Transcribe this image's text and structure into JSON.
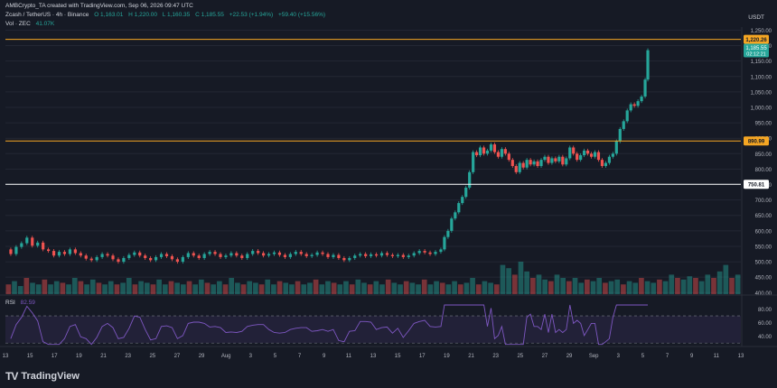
{
  "header": {
    "byline": "AMBCrypto_TA created with TradingView.com, Sep 06, 2026 09:47 UTC",
    "symbol": "Zcash / TetherUS · 4h · Binance",
    "ohlc": {
      "o": "O 1,163.01",
      "h": "H 1,220.00",
      "l": "L 1,160.35",
      "c": "C 1,185.55",
      "chg": "+22.53 (+1.94%)",
      "range": "+59.40 (+15.56%)"
    },
    "volume": {
      "label": "Vol · ZEC",
      "value": "41.07K"
    }
  },
  "axis": {
    "unit": "USDT",
    "rsi_label": "RSI",
    "rsi_value": "82.59"
  },
  "brand": {
    "name": "TradingView",
    "logo": "TV"
  },
  "colors": {
    "bg": "#161a25",
    "up": "#26a69a",
    "down": "#ef5350",
    "resistance": "#f5a623",
    "support": "#ffffff",
    "rsi": "#7e57c2",
    "price_tag": "#26a69a"
  },
  "chart_data": {
    "type": "candlestick",
    "y_ticks": [
      "1,250.00",
      "1,200.00",
      "1,150.00",
      "1,100.00",
      "1,050.00",
      "1,000.00",
      "950.00",
      "900.00",
      "850.00",
      "800.00",
      "750.00",
      "700.00",
      "650.00",
      "600.00",
      "550.00",
      "500.00",
      "450.00",
      "400.00"
    ],
    "ylim": [
      395,
      1260
    ],
    "x_ticks": [
      "13",
      "15",
      "17",
      "19",
      "21",
      "23",
      "25",
      "27",
      "29",
      "Aug",
      "3",
      "5",
      "7",
      "9",
      "11",
      "13",
      "15",
      "17",
      "19",
      "21",
      "23",
      "25",
      "27",
      "29",
      "Sep",
      "3",
      "5",
      "7",
      "9",
      "11",
      "13"
    ],
    "levels": [
      {
        "price": 1220.26,
        "label": "1,220.26",
        "color": "#f5a623"
      },
      {
        "price": 890.99,
        "label": "890.99",
        "color": "#f5a623"
      },
      {
        "price": 750.81,
        "label": "750.81",
        "color": "#ffffff"
      }
    ],
    "price_tag": {
      "price": 1185.55,
      "label": "1,185.55",
      "countdown": "02:12:21"
    },
    "rsi_ticks": [
      "80.00",
      "60.00",
      "40.00"
    ],
    "rsi_bands": [
      70,
      30
    ],
    "series_close": [
      [
        0,
        540
      ],
      [
        6,
        525
      ],
      [
        12,
        548
      ],
      [
        18,
        560
      ],
      [
        24,
        578
      ],
      [
        30,
        552
      ],
      [
        36,
        562
      ],
      [
        42,
        540
      ],
      [
        48,
        535
      ],
      [
        54,
        520
      ],
      [
        60,
        532
      ],
      [
        66,
        525
      ],
      [
        72,
        540
      ],
      [
        78,
        528
      ],
      [
        84,
        520
      ],
      [
        90,
        510
      ],
      [
        96,
        505
      ],
      [
        102,
        515
      ],
      [
        108,
        525
      ],
      [
        114,
        520
      ],
      [
        120,
        508
      ],
      [
        126,
        500
      ],
      [
        132,
        512
      ],
      [
        138,
        522
      ],
      [
        144,
        530
      ],
      [
        150,
        520
      ],
      [
        156,
        512
      ],
      [
        162,
        505
      ],
      [
        168,
        515
      ],
      [
        174,
        525
      ],
      [
        180,
        518
      ],
      [
        186,
        508
      ],
      [
        192,
        500
      ],
      [
        198,
        515
      ],
      [
        204,
        528
      ],
      [
        210,
        520
      ],
      [
        216,
        512
      ],
      [
        222,
        525
      ],
      [
        228,
        532
      ],
      [
        234,
        525
      ],
      [
        240,
        515
      ],
      [
        246,
        520
      ],
      [
        252,
        528
      ],
      [
        258,
        520
      ],
      [
        264,
        512
      ],
      [
        270,
        525
      ],
      [
        276,
        535
      ],
      [
        282,
        528
      ],
      [
        288,
        520
      ],
      [
        294,
        525
      ],
      [
        300,
        530
      ],
      [
        306,
        522
      ],
      [
        312,
        515
      ],
      [
        318,
        525
      ],
      [
        324,
        532
      ],
      [
        330,
        525
      ],
      [
        336,
        518
      ],
      [
        342,
        522
      ],
      [
        348,
        530
      ],
      [
        354,
        525
      ],
      [
        360,
        515
      ],
      [
        366,
        522
      ],
      [
        372,
        512
      ],
      [
        378,
        505
      ],
      [
        384,
        512
      ],
      [
        390,
        520
      ],
      [
        396,
        525
      ],
      [
        402,
        518
      ],
      [
        408,
        524
      ],
      [
        414,
        520
      ],
      [
        420,
        528
      ],
      [
        426,
        522
      ],
      [
        432,
        518
      ],
      [
        438,
        522
      ],
      [
        444,
        515
      ],
      [
        450,
        520
      ],
      [
        456,
        528
      ],
      [
        462,
        535
      ],
      [
        468,
        530
      ],
      [
        474,
        525
      ],
      [
        480,
        532
      ],
      [
        486,
        540
      ],
      [
        490,
        580
      ],
      [
        494,
        600
      ],
      [
        498,
        640
      ],
      [
        502,
        660
      ],
      [
        506,
        690
      ],
      [
        510,
        710
      ],
      [
        514,
        740
      ],
      [
        518,
        790
      ],
      [
        522,
        855
      ],
      [
        526,
        845
      ],
      [
        530,
        870
      ],
      [
        534,
        850
      ],
      [
        538,
        860
      ],
      [
        542,
        880
      ],
      [
        546,
        855
      ],
      [
        550,
        840
      ],
      [
        554,
        865
      ],
      [
        558,
        850
      ],
      [
        562,
        830
      ],
      [
        566,
        810
      ],
      [
        570,
        790
      ],
      [
        574,
        820
      ],
      [
        578,
        805
      ],
      [
        582,
        830
      ],
      [
        586,
        815
      ],
      [
        590,
        825
      ],
      [
        594,
        810
      ],
      [
        598,
        830
      ],
      [
        602,
        840
      ],
      [
        606,
        820
      ],
      [
        610,
        835
      ],
      [
        614,
        825
      ],
      [
        618,
        840
      ],
      [
        622,
        815
      ],
      [
        626,
        835
      ],
      [
        630,
        870
      ],
      [
        634,
        850
      ],
      [
        638,
        830
      ],
      [
        642,
        845
      ],
      [
        646,
        860
      ],
      [
        650,
        850
      ],
      [
        654,
        840
      ],
      [
        658,
        855
      ],
      [
        662,
        830
      ],
      [
        666,
        810
      ],
      [
        670,
        820
      ],
      [
        674,
        840
      ],
      [
        678,
        850
      ],
      [
        682,
        890
      ],
      [
        686,
        930
      ],
      [
        690,
        955
      ],
      [
        694,
        990
      ],
      [
        698,
        1010
      ],
      [
        702,
        1005
      ],
      [
        706,
        1020
      ],
      [
        710,
        1035
      ],
      [
        714,
        1090
      ],
      [
        717,
        1185
      ]
    ],
    "volume_profile": [
      0.3,
      0.4,
      0.25,
      0.5,
      0.35,
      0.3,
      0.45,
      0.3,
      0.4,
      0.35,
      0.3,
      0.5,
      0.4,
      0.3,
      0.45,
      0.35,
      0.3,
      0.4,
      0.3,
      0.35,
      0.5,
      0.3,
      0.4,
      0.35,
      0.3,
      0.45,
      0.3,
      0.4,
      0.35,
      0.3,
      0.4,
      0.3,
      0.45,
      0.35,
      0.3,
      0.4,
      0.3,
      0.5,
      0.35,
      0.3,
      0.4,
      0.35,
      0.3,
      0.45,
      0.3,
      0.4,
      0.35,
      0.3,
      0.4,
      0.3,
      0.35,
      0.45,
      0.3,
      0.4,
      0.35,
      0.3,
      0.4,
      0.3,
      0.45,
      0.35,
      0.3,
      0.4,
      0.3,
      0.45,
      0.35,
      0.3,
      0.4,
      0.35,
      0.3,
      0.45,
      0.3,
      0.4,
      0.35,
      0.3,
      0.4,
      0.3,
      0.35,
      0.5,
      0.3,
      0.4,
      0.35,
      0.3,
      0.9,
      0.8,
      0.6,
      1.0,
      0.7,
      0.5,
      0.6,
      0.45,
      0.4,
      0.6,
      0.5,
      0.4,
      0.5,
      0.35,
      0.45,
      0.4,
      0.5,
      0.35,
      0.4,
      0.45,
      0.3,
      0.4,
      0.35,
      0.5,
      0.4,
      0.35,
      0.45,
      0.4,
      0.6,
      0.5,
      0.45,
      0.55,
      0.5,
      0.4,
      0.6,
      0.5,
      0.7,
      0.9,
      0.5,
      0.6
    ]
  }
}
